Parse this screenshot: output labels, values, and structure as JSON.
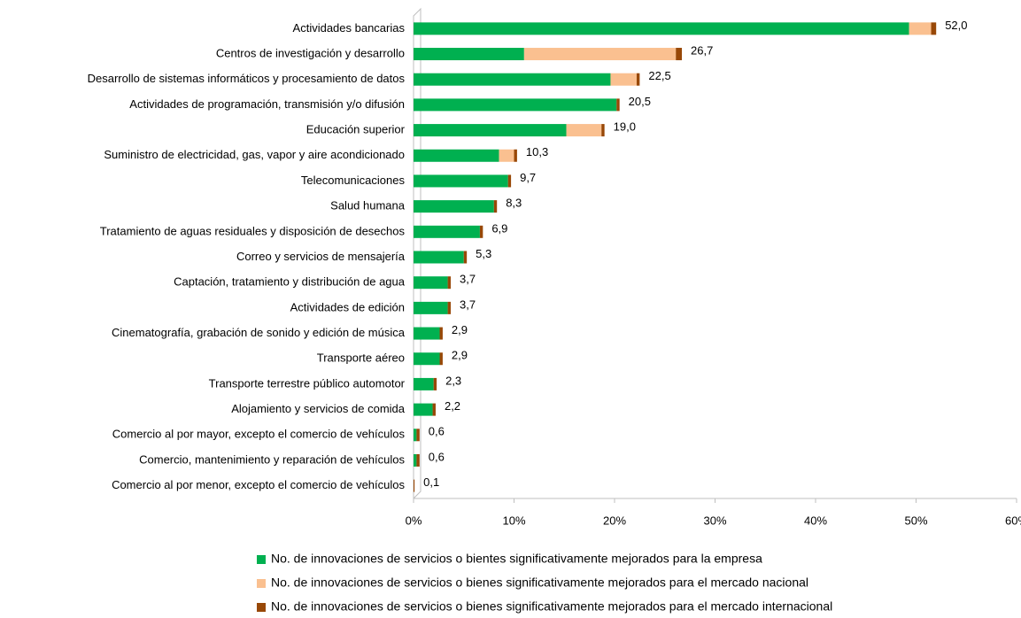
{
  "chart_data": {
    "type": "bar",
    "orientation": "horizontal",
    "stacked": true,
    "categories": [
      "Actividades bancarias",
      "Centros de investigación y desarrollo",
      "Desarrollo de sistemas informáticos y procesamiento de datos",
      "Actividades de programación, transmisión y/o difusión",
      "Educación superior",
      "Suministro de electricidad, gas, vapor y aire acondicionado",
      "Telecomunicaciones",
      "Salud humana",
      "Tratamiento de aguas residuales y disposición de desechos",
      "Correo y servicios de mensajería",
      "Captación, tratamiento y distribución de agua",
      "Actividades de edición",
      "Cinematografía, grabación de sonido y edición de música",
      "Transporte aéreo",
      "Transporte terrestre público automotor",
      "Alojamiento y servicios de comida",
      "Comercio al por mayor, excepto el comercio de vehículos",
      "Comercio, mantenimiento y reparación de vehículos",
      "Comercio al por menor, excepto el comercio de vehículos"
    ],
    "series": [
      {
        "name": "No. de innovaciones de servicios o bientes significativamente mejorados para la empresa",
        "color": "#00b050",
        "values": [
          49.3,
          11.0,
          19.6,
          20.2,
          15.2,
          8.5,
          9.4,
          8.0,
          6.6,
          5.0,
          3.4,
          3.4,
          2.6,
          2.6,
          2.0,
          1.9,
          0.3,
          0.3,
          0
        ]
      },
      {
        "name": "No. de innovaciones de servicios o bienes significativamente mejorados para el mercado nacional",
        "color": "#fac090",
        "values": [
          2.2,
          15.1,
          2.6,
          0,
          3.5,
          1.5,
          0,
          0,
          0,
          0,
          0,
          0,
          0,
          0,
          0,
          0,
          0,
          0,
          0
        ]
      },
      {
        "name": "No. de innovaciones de servicios o bienes significativamente mejorados para el mercado internacional",
        "color": "#984807",
        "values": [
          0.5,
          0.6,
          0.3,
          0.3,
          0.3,
          0.3,
          0.3,
          0.3,
          0.3,
          0.3,
          0.3,
          0.3,
          0.3,
          0.3,
          0.3,
          0.3,
          0.3,
          0.3,
          0.1
        ]
      }
    ],
    "totals": [
      52.0,
      26.7,
      22.5,
      20.5,
      19.0,
      10.3,
      9.7,
      8.3,
      6.9,
      5.3,
      3.7,
      3.7,
      2.9,
      2.9,
      2.3,
      2.2,
      0.6,
      0.6,
      0.1
    ],
    "total_labels": [
      "52,0",
      "26,7",
      "22,5",
      "20,5",
      "19,0",
      "10,3",
      "9,7",
      "8,3",
      "6,9",
      "5,3",
      "3,7",
      "3,7",
      "2,9",
      "2,9",
      "2,3",
      "2,2",
      "0,6",
      "0,6",
      "0,1"
    ],
    "xlim": [
      0,
      60
    ],
    "xticks": [
      {
        "value": 0,
        "label": "0%"
      },
      {
        "value": 10,
        "label": "10%"
      },
      {
        "value": 20,
        "label": "20%"
      },
      {
        "value": 30,
        "label": "30%"
      },
      {
        "value": 40,
        "label": "40%"
      },
      {
        "value": 50,
        "label": "50%"
      },
      {
        "value": 60,
        "label": "60%"
      }
    ],
    "grid": false,
    "legend": "bottom"
  }
}
